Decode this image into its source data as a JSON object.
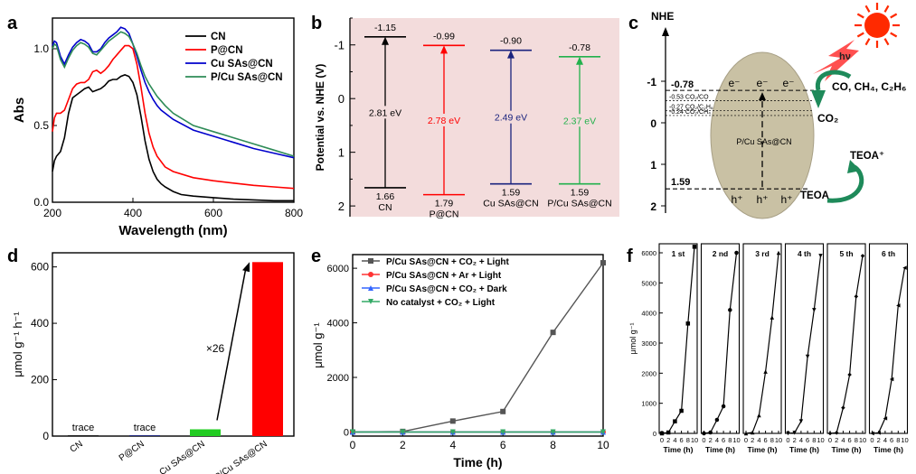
{
  "panel_labels": {
    "a": "a",
    "b": "b",
    "c": "c",
    "d": "d",
    "e": "e",
    "f": "f"
  },
  "chart_data": [
    {
      "panel": "a",
      "type": "line",
      "title": "",
      "xlabel": "Wavelength (nm)",
      "ylabel": "Abs",
      "xlim": [
        200,
        800
      ],
      "ylim": [
        0,
        1.2
      ],
      "xticks": [
        "200",
        "400",
        "600",
        "800"
      ],
      "yticks": [
        "0.0",
        "0.5",
        "1.0"
      ],
      "xtick_values": [
        200,
        400,
        600,
        800
      ],
      "ytick_values": [
        0,
        0.5,
        1.0
      ],
      "legend_position": "top-right",
      "series": [
        {
          "name": "CN",
          "color": "#000000",
          "x": [
            200,
            205,
            210,
            220,
            230,
            240,
            250,
            260,
            270,
            280,
            290,
            300,
            310,
            320,
            330,
            340,
            350,
            360,
            370,
            380,
            390,
            400,
            410,
            420,
            430,
            440,
            450,
            460,
            470,
            480,
            500,
            520,
            550,
            600,
            650,
            700,
            750,
            800
          ],
          "y": [
            0.2,
            0.27,
            0.3,
            0.33,
            0.42,
            0.58,
            0.68,
            0.7,
            0.72,
            0.74,
            0.75,
            0.72,
            0.73,
            0.74,
            0.76,
            0.79,
            0.8,
            0.8,
            0.82,
            0.83,
            0.82,
            0.78,
            0.7,
            0.56,
            0.4,
            0.28,
            0.2,
            0.15,
            0.12,
            0.1,
            0.07,
            0.05,
            0.04,
            0.03,
            0.02,
            0.015,
            0.01,
            0.01
          ]
        },
        {
          "name": "P@CN",
          "color": "#ff0000",
          "x": [
            200,
            205,
            210,
            220,
            230,
            240,
            250,
            260,
            270,
            280,
            290,
            300,
            310,
            320,
            330,
            340,
            350,
            360,
            370,
            380,
            390,
            400,
            410,
            420,
            430,
            440,
            450,
            460,
            480,
            500,
            550,
            600,
            650,
            700,
            750,
            800
          ],
          "y": [
            0.46,
            0.55,
            0.58,
            0.58,
            0.6,
            0.67,
            0.74,
            0.77,
            0.78,
            0.78,
            0.8,
            0.85,
            0.86,
            0.84,
            0.86,
            0.89,
            0.93,
            0.96,
            0.99,
            1.02,
            1.02,
            1.0,
            0.9,
            0.75,
            0.58,
            0.45,
            0.36,
            0.3,
            0.23,
            0.2,
            0.16,
            0.14,
            0.125,
            0.11,
            0.1,
            0.09
          ]
        },
        {
          "name": "Cu SAs@CN",
          "color": "#0000cc",
          "x": [
            200,
            205,
            210,
            220,
            230,
            240,
            250,
            260,
            270,
            280,
            290,
            300,
            310,
            320,
            330,
            340,
            350,
            360,
            370,
            380,
            390,
            400,
            410,
            420,
            430,
            440,
            450,
            460,
            470,
            480,
            500,
            550,
            600,
            650,
            700,
            750,
            800
          ],
          "y": [
            1.02,
            1.05,
            1.04,
            0.95,
            0.9,
            0.96,
            1.01,
            1.04,
            1.06,
            1.05,
            1.03,
            0.98,
            0.98,
            1.0,
            1.04,
            1.07,
            1.09,
            1.11,
            1.14,
            1.13,
            1.1,
            1.03,
            0.95,
            0.86,
            0.78,
            0.72,
            0.67,
            0.63,
            0.6,
            0.58,
            0.54,
            0.47,
            0.43,
            0.39,
            0.35,
            0.32,
            0.29
          ]
        },
        {
          "name": "P/Cu SAs@CN",
          "color": "#2e8b57",
          "x": [
            200,
            205,
            210,
            220,
            230,
            240,
            250,
            260,
            270,
            280,
            290,
            300,
            310,
            320,
            330,
            340,
            350,
            360,
            370,
            380,
            390,
            400,
            410,
            420,
            430,
            440,
            450,
            460,
            470,
            480,
            500,
            550,
            600,
            650,
            700,
            750,
            800
          ],
          "y": [
            1.0,
            1.03,
            1.02,
            0.93,
            0.88,
            0.94,
            0.99,
            1.02,
            1.04,
            1.03,
            1.01,
            0.97,
            0.96,
            0.99,
            1.02,
            1.05,
            1.07,
            1.09,
            1.11,
            1.1,
            1.08,
            1.03,
            0.97,
            0.89,
            0.82,
            0.77,
            0.73,
            0.69,
            0.66,
            0.63,
            0.58,
            0.5,
            0.46,
            0.42,
            0.38,
            0.34,
            0.3
          ]
        }
      ]
    },
    {
      "panel": "b",
      "type": "band_diagram",
      "ylabel": "Potential vs. NHE (V)",
      "ylim": [
        -1.5,
        2.2
      ],
      "yticks": [
        "-1",
        "0",
        "1",
        "2"
      ],
      "ytick_values": [
        -1,
        0,
        1,
        2
      ],
      "background": "#f3dcdc",
      "materials": [
        {
          "name": "CN",
          "name_lines": [
            "1.66",
            "CN"
          ],
          "cb": -1.15,
          "vb": 1.66,
          "cb_label": "-1.15",
          "gap_label": "2.81 eV",
          "color": "#000000"
        },
        {
          "name": "P@CN",
          "name_lines": [
            "1.79",
            "P@CN"
          ],
          "cb": -0.99,
          "vb": 1.79,
          "cb_label": "-0.99",
          "gap_label": "2.78 eV",
          "color": "#ff0000"
        },
        {
          "name": "Cu SAs@CN",
          "name_lines": [
            "1.59",
            "Cu SAs@CN"
          ],
          "cb": -0.9,
          "vb": 1.59,
          "cb_label": "-0.90",
          "gap_label": "2.49 eV",
          "color": "#1a237e"
        },
        {
          "name": "P/Cu SAs@CN",
          "name_lines": [
            "1.59",
            "P/Cu SAs@CN"
          ],
          "cb": -0.78,
          "vb": 1.59,
          "cb_label": "-0.78",
          "gap_label": "2.37 eV",
          "color": "#22b14c"
        }
      ]
    },
    {
      "panel": "c",
      "type": "diagram",
      "axis_title": "NHE",
      "yticks": [
        "-1",
        "0",
        "1",
        "2"
      ],
      "ytick_values": [
        -1,
        0,
        1,
        2
      ],
      "cb_value": "-0.78",
      "vb_value": "1.59",
      "levels": [
        {
          "label": "-0.53  CO₂/CO",
          "value": -0.53
        },
        {
          "label": "-0.27  CO₂/C₂H₆",
          "value": -0.27
        },
        {
          "label": "-0.24  CO₂/CH₄",
          "value": -0.24
        }
      ],
      "particle_label": "P/Cu SAs@CN",
      "electron": "e⁻",
      "hole": "h⁺",
      "light_label": "hν",
      "products": "CO, CH₄, C₂H₆",
      "reactant": "CO₂",
      "teoa_plus": "TEOA⁺",
      "teoa": "TEOA"
    },
    {
      "panel": "d",
      "type": "bar",
      "ylabel": "μmol g⁻¹ h⁻¹",
      "ylim": [
        0,
        650
      ],
      "yticks": [
        "0",
        "200",
        "400",
        "600"
      ],
      "ytick_values": [
        0,
        200,
        400,
        600
      ],
      "categories": [
        "CN",
        "P@CN",
        "Cu SAs@CN",
        "P/Cu SAs@CN"
      ],
      "values": [
        3,
        3,
        24,
        617
      ],
      "colors": [
        "#1a1a1a",
        "#1a237e",
        "#22cc22",
        "#ff0000"
      ],
      "data_labels": [
        "trace",
        "trace",
        "",
        ""
      ],
      "annotation": "×26"
    },
    {
      "panel": "e",
      "type": "line",
      "xlabel": "Time (h)",
      "ylabel": "μmol g⁻¹",
      "xlim": [
        0,
        10
      ],
      "ylim": [
        -150,
        6500
      ],
      "xticks": [
        "0",
        "2",
        "4",
        "6",
        "8",
        "10"
      ],
      "yticks": [
        "0",
        "2000",
        "4000",
        "6000"
      ],
      "xtick_values": [
        0,
        2,
        4,
        6,
        8,
        10
      ],
      "ytick_values": [
        0,
        2000,
        4000,
        6000
      ],
      "legend_position": "top-left",
      "series": [
        {
          "name": "P/Cu SAs@CN + CO₂ + Light",
          "color": "#555555",
          "marker": "square",
          "x": [
            0,
            2,
            4,
            6,
            8,
            10
          ],
          "y": [
            0,
            20,
            400,
            750,
            3650,
            6200
          ]
        },
        {
          "name": "P/Cu SAs@CN + Ar + Light",
          "color": "#ff3333",
          "marker": "circle",
          "x": [
            0,
            2,
            4,
            6,
            8,
            10
          ],
          "y": [
            0,
            0,
            0,
            0,
            0,
            0
          ]
        },
        {
          "name": "P/Cu SAs@CN + CO₂ + Dark",
          "color": "#3366ff",
          "marker": "triangle-up",
          "x": [
            0,
            2,
            4,
            6,
            8,
            10
          ],
          "y": [
            0,
            0,
            0,
            0,
            0,
            0
          ]
        },
        {
          "name": "No catalyst + CO₂ + Light",
          "color": "#33aa66",
          "marker": "triangle-down",
          "x": [
            0,
            2,
            4,
            6,
            8,
            10
          ],
          "y": [
            0,
            0,
            0,
            0,
            0,
            0
          ]
        }
      ]
    },
    {
      "panel": "f",
      "type": "line",
      "xlabel": "Time (h)",
      "ylabel": "μmol g⁻¹",
      "xlim": [
        0,
        10
      ],
      "ylim": [
        0,
        6300
      ],
      "xticks": [
        "0",
        "2",
        "4",
        "6",
        "8",
        "10"
      ],
      "yticks": [
        "0",
        "1000",
        "2000",
        "3000",
        "4000",
        "5000",
        "6000"
      ],
      "xtick_values": [
        0,
        2,
        4,
        6,
        8,
        10
      ],
      "ytick_values": [
        0,
        1000,
        2000,
        3000,
        4000,
        5000,
        6000
      ],
      "cycles": [
        {
          "label": "1 st",
          "marker": "square",
          "x": [
            0,
            2,
            4,
            6,
            8,
            10
          ],
          "y": [
            0,
            30,
            400,
            750,
            3650,
            6200
          ]
        },
        {
          "label": "2 nd",
          "marker": "circle",
          "x": [
            0,
            2,
            4,
            6,
            8,
            10
          ],
          "y": [
            0,
            30,
            450,
            900,
            4100,
            6000
          ]
        },
        {
          "label": "3 rd",
          "marker": "triangle-up",
          "x": [
            0,
            2,
            4,
            6,
            8,
            10
          ],
          "y": [
            0,
            30,
            600,
            2050,
            3850,
            6000
          ]
        },
        {
          "label": "4 th",
          "marker": "triangle-down",
          "x": [
            0,
            2,
            4,
            6,
            8,
            10
          ],
          "y": [
            0,
            20,
            400,
            2550,
            4100,
            5900
          ]
        },
        {
          "label": "5 th",
          "marker": "diamond",
          "x": [
            0,
            2,
            4,
            6,
            8,
            10
          ],
          "y": [
            0,
            20,
            850,
            1950,
            4550,
            5900
          ]
        },
        {
          "label": "6 th",
          "marker": "triangle-left",
          "x": [
            0,
            2,
            4,
            6,
            8,
            10
          ],
          "y": [
            0,
            20,
            500,
            1800,
            4250,
            5500
          ]
        }
      ]
    }
  ]
}
